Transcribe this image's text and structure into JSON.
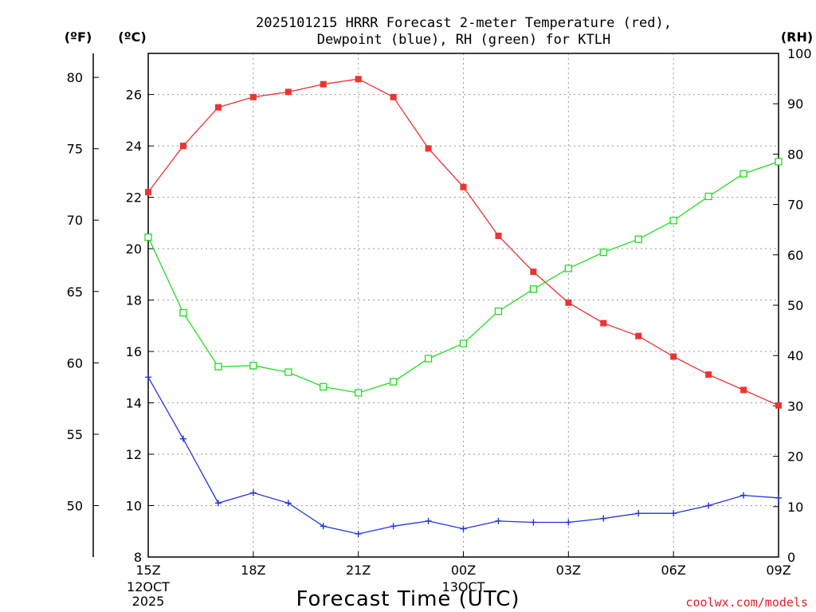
{
  "chart_data": {
    "type": "line",
    "title": "2025101215 HRRR Forecast 2-meter Temperature (red),",
    "title_line2": "Dewpoint (blue), RH (green) for KTLH",
    "xlabel": "Forecast Time (UTC)",
    "credit": "coolwx.com/models",
    "unit_f": "(ºF)",
    "unit_c": "(ºC)",
    "unit_rh": "(RH)",
    "x_hours": [
      0,
      1,
      2,
      3,
      4,
      5,
      6,
      7,
      8,
      9,
      10,
      11,
      12,
      13,
      14,
      15,
      16,
      17,
      18
    ],
    "x_ticks": [
      {
        "hour": 0,
        "label": "15Z",
        "sub": [
          "12OCT",
          "2025"
        ]
      },
      {
        "hour": 3,
        "label": "18Z",
        "sub": []
      },
      {
        "hour": 6,
        "label": "21Z",
        "sub": []
      },
      {
        "hour": 9,
        "label": "00Z",
        "sub": [
          "13OCT"
        ]
      },
      {
        "hour": 12,
        "label": "03Z",
        "sub": []
      },
      {
        "hour": 15,
        "label": "06Z",
        "sub": []
      },
      {
        "hour": 18,
        "label": "09Z",
        "sub": []
      }
    ],
    "celsius_range": [
      8,
      27.6
    ],
    "celsius_ticks": [
      8,
      10,
      12,
      14,
      16,
      18,
      20,
      22,
      24,
      26
    ],
    "fahrenheit_ticks": [
      50,
      55,
      60,
      65,
      70,
      75,
      80
    ],
    "rh_range": [
      0,
      100
    ],
    "rh_ticks": [
      0,
      10,
      20,
      30,
      40,
      50,
      60,
      70,
      80,
      90,
      100
    ],
    "series": [
      {
        "name": "2-meter Temperature",
        "color": "#ee3333",
        "marker": "filled-square",
        "axis": "celsius",
        "values": [
          22.2,
          24.0,
          25.5,
          25.9,
          26.1,
          26.4,
          26.6,
          25.9,
          23.9,
          22.4,
          20.5,
          19.1,
          17.9,
          17.1,
          16.6,
          15.8,
          15.1,
          14.5,
          13.9
        ]
      },
      {
        "name": "Dewpoint",
        "color": "#2233dd",
        "marker": "plus",
        "axis": "celsius",
        "values": [
          15.0,
          12.6,
          10.1,
          10.5,
          10.1,
          9.2,
          8.9,
          9.2,
          9.4,
          9.1,
          9.4,
          9.35,
          9.35,
          9.5,
          9.7,
          9.7,
          10.0,
          10.4,
          10.3
        ]
      },
      {
        "name": "RH",
        "color": "#22dd22",
        "marker": "open-square",
        "axis": "rh",
        "values": [
          63.5,
          48.5,
          37.8,
          38.0,
          36.7,
          33.8,
          32.6,
          34.8,
          39.4,
          42.4,
          48.8,
          53.2,
          57.3,
          60.5,
          63.1,
          66.8,
          71.6,
          76.1,
          78.5
        ]
      }
    ]
  }
}
